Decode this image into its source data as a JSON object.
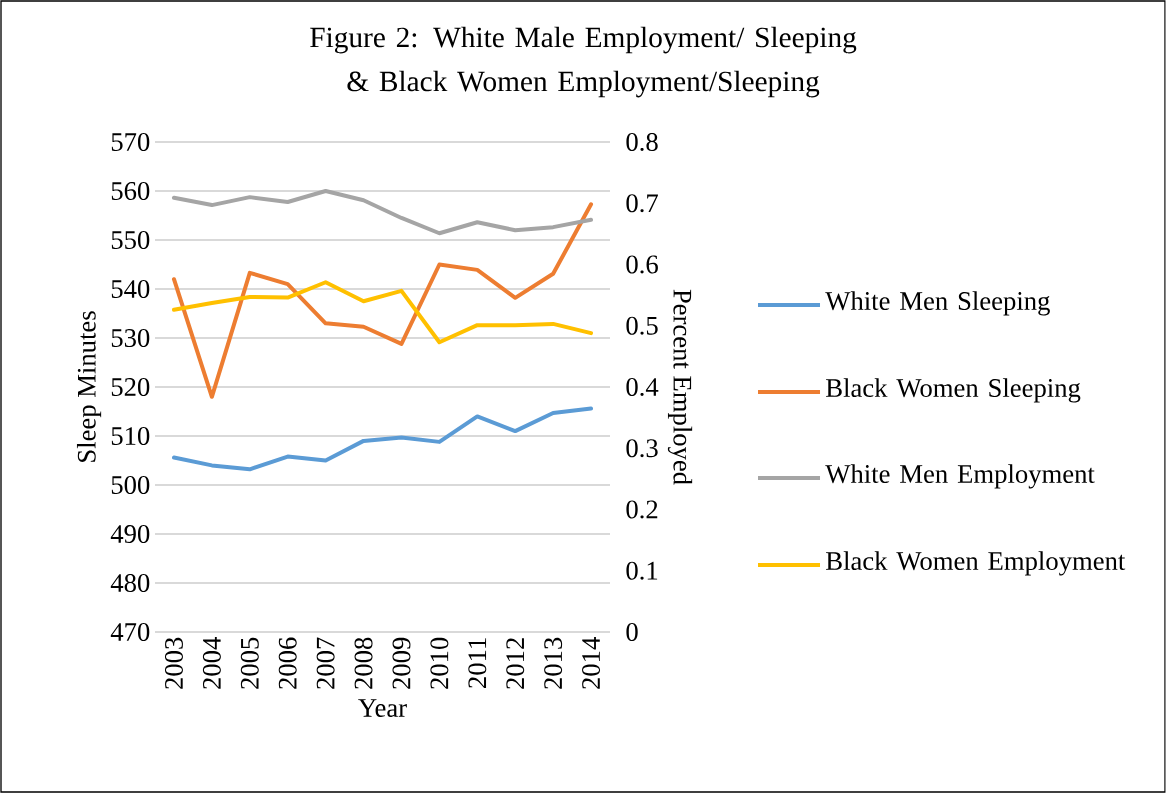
{
  "chart_data": {
    "type": "line",
    "title": "Figure 2: White Male Employment/ Sleeping & Black Women Employment/Sleeping",
    "xlabel": "Year",
    "ylabel": "Sleep Minutes",
    "y2label": "Percent Employed",
    "categories": [
      "2003",
      "2004",
      "2005",
      "2006",
      "2007",
      "2008",
      "2009",
      "2010",
      "2011",
      "2012",
      "2013",
      "2014"
    ],
    "series": [
      {
        "name": "White Men Sleeping",
        "color": "#5b9bd5",
        "values": [
          505.6,
          504.0,
          503.2,
          505.8,
          505.0,
          509.0,
          509.7,
          508.8,
          514.0,
          511.0,
          514.7,
          515.6
        ]
      },
      {
        "name": "Black Women Sleeping",
        "color": "#ed7d31",
        "values": [
          542.0,
          518.0,
          543.3,
          541.0,
          533.0,
          532.3,
          528.8,
          545.0,
          543.9,
          538.2,
          543.1,
          557.3
        ]
      },
      {
        "name": "White Men Employment",
        "color": "#a5a5a5",
        "axis": "y2",
        "values": [
          0.709,
          0.697,
          0.71,
          0.702,
          0.72,
          0.705,
          0.676,
          0.651,
          0.669,
          0.656,
          0.661,
          0.673
        ]
      },
      {
        "name": "Black Women Employment",
        "color": "#ffc000",
        "axis": "y2",
        "values": [
          0.526,
          0.537,
          0.547,
          0.546,
          0.571,
          0.54,
          0.557,
          0.473,
          0.501,
          0.501,
          0.503,
          0.488
        ]
      }
    ],
    "ylim": [
      470,
      570
    ],
    "yticks": [
      470,
      480,
      490,
      500,
      510,
      520,
      530,
      540,
      550,
      560,
      570
    ],
    "y2lim": [
      0,
      0.8
    ],
    "y2ticks": [
      0,
      0.1,
      0.2,
      0.3,
      0.4,
      0.5,
      0.6,
      0.7,
      0.8
    ],
    "grid": "y",
    "legend": "right",
    "marker": "none",
    "line_style": "solid"
  }
}
